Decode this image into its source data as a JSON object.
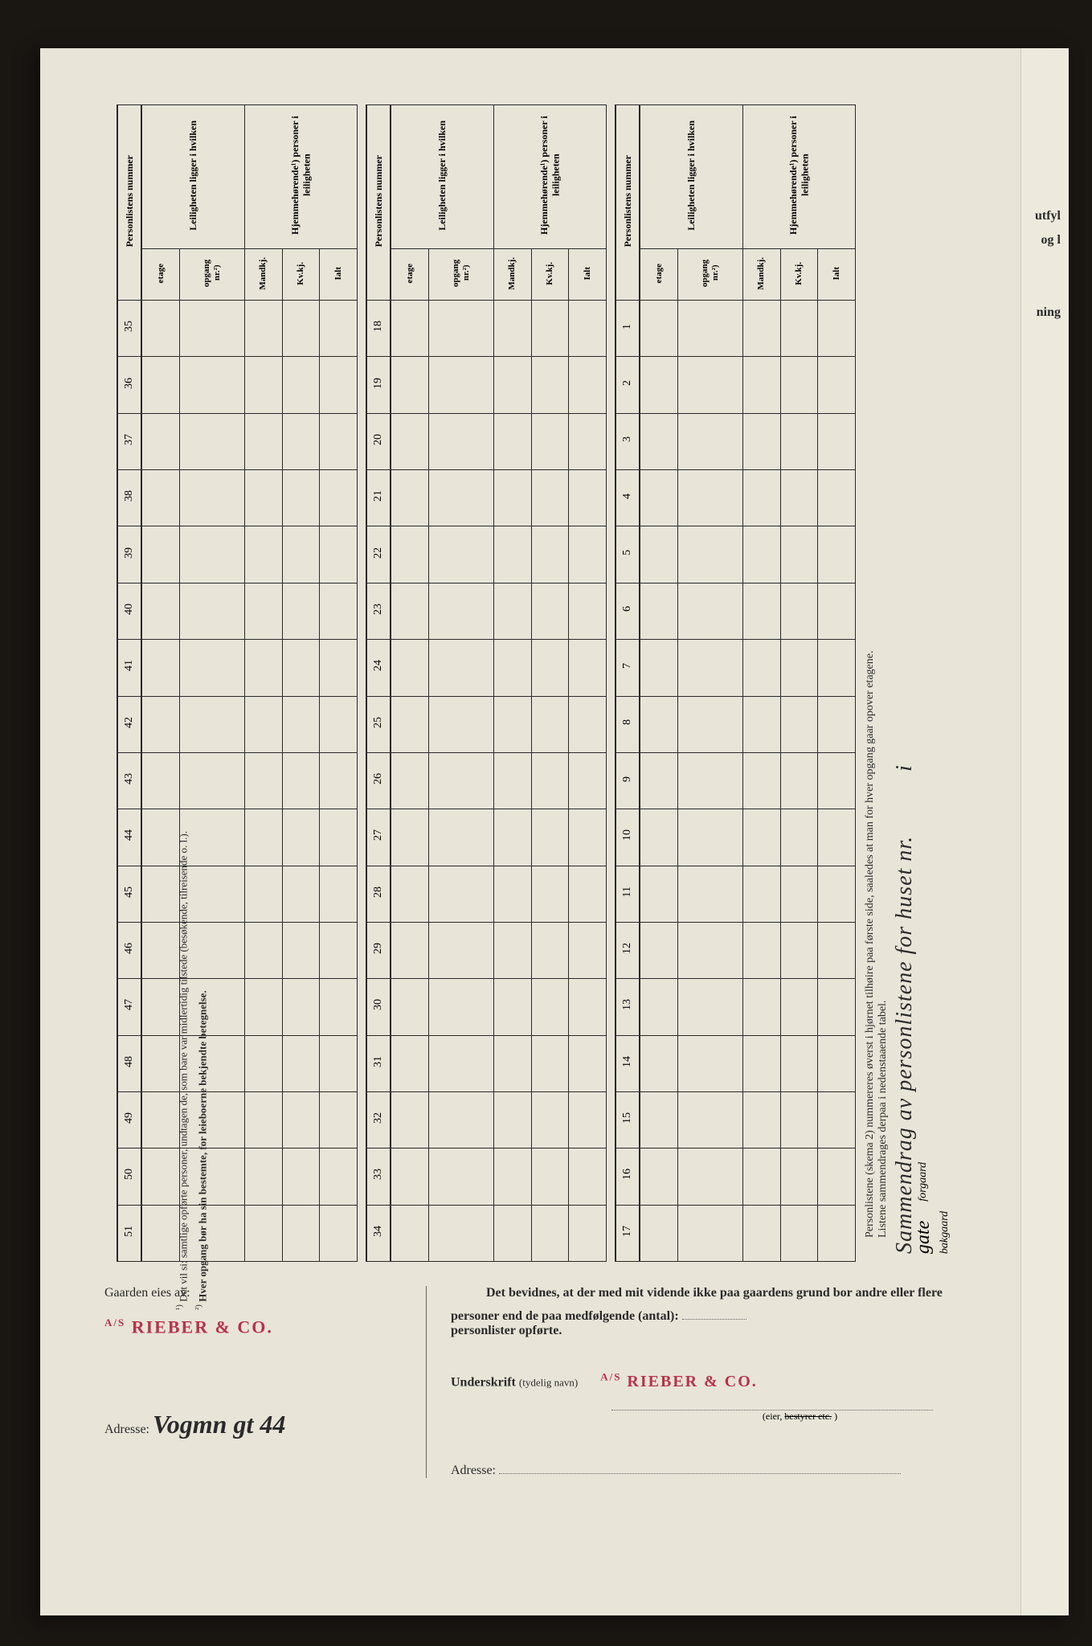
{
  "title": {
    "main": "Sammendrag av personlistene for huset nr.",
    "in": "i",
    "gate": "gate",
    "forgaard": "forgaard",
    "bakgaard": "bakgaard",
    "subtitle1": "Personlistene (skema 2) nummereres øverst i hjørnet tilhøire paa første side, saaledes at man for hver opgang gaar opover etagene.",
    "subtitle2": "Listene sammendrages derpaa i nedenstaaende tabel."
  },
  "right_edge": {
    "t1": "utfyl",
    "t2": "og l",
    "t3": "ning"
  },
  "table": {
    "header_num": "Personlistens nummer",
    "header_leil": "Leiligheten ligger i hvilken",
    "header_hjemme": "Hjemmehørende¹) personer i leiligheten",
    "sub_etage": "etage",
    "sub_opgang": "opgang nr.²)",
    "sub_mandkj": "Mandkj.",
    "sub_kvkj": "Kv.kj.",
    "sub_ialt": "Ialt",
    "block1_nums": [
      1,
      2,
      3,
      4,
      5,
      6,
      7,
      8,
      9,
      10,
      11,
      12,
      13,
      14,
      15,
      16,
      17
    ],
    "block2_nums": [
      18,
      19,
      20,
      21,
      22,
      23,
      24,
      25,
      26,
      27,
      28,
      29,
      30,
      31,
      32,
      33,
      34
    ],
    "block3_nums": [
      35,
      36,
      37,
      38,
      39,
      40,
      41,
      42,
      43,
      44,
      45,
      46,
      47,
      48,
      49,
      50,
      51
    ]
  },
  "footnotes": {
    "f1_mark": "¹)",
    "f1": "Det vil si: samtlige opførte personer, undtagen de, som bare var midlertidig tilstede (besøkende, tilreisende o. l.).",
    "f2_mark": "²)",
    "f2": "Hver opgang bør ha sin bestemte, for leieboerne bekjendte betegnelse."
  },
  "bottom": {
    "gaarden_label": "Gaarden eies av:",
    "stamp_prefix": "A/S",
    "stamp_name": "RIEBER & CO.",
    "adresse_label": "Adresse:",
    "adresse_value": "Vogmn gt 44",
    "bevidnes": "Det bevidnes, at der med mit vidende ikke paa gaardens grund bor andre eller flere personer end de paa medfølgende (antal):",
    "personlister": "personlister opførte.",
    "underskrift_label": "Underskrift",
    "tydelig": "(tydelig navn)",
    "eier": "(eier, ",
    "bestyrer": "bestyrer etc.",
    "close_paren": ")",
    "adresse2_label": "Adresse:"
  },
  "colors": {
    "paper": "#e8e4d8",
    "ink": "#2a2a2a",
    "stamp": "#b8324a"
  }
}
